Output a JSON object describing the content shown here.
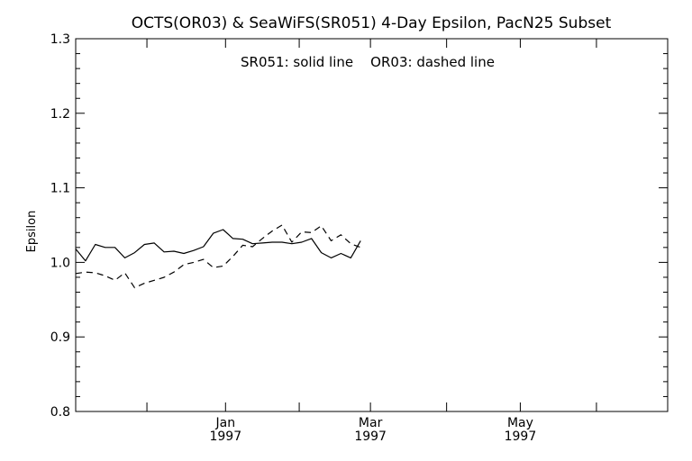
{
  "chart_data": {
    "type": "line",
    "title": "OCTS(OR03) & SeaWiFS(SR051) 4-Day Epsilon, PacN25 Subset",
    "annotation": "SR051: solid line    OR03: dashed line",
    "ylabel": "Epsilon",
    "xlabel": "",
    "ylim": [
      0.8,
      1.3
    ],
    "yticks": [
      "0.8",
      "0.9",
      "1.0",
      "1.1",
      "1.2",
      "1.3"
    ],
    "yminor_step": 0.02,
    "xlim": [
      "1996-11-01",
      "1997-06-30"
    ],
    "xticks": [
      {
        "date": "1996-11-30"
      },
      {
        "date": "1997-01-01",
        "month": "Jan",
        "year": "1997"
      },
      {
        "date": "1997-01-31"
      },
      {
        "date": "1997-03-01",
        "month": "Mar",
        "year": "1997"
      },
      {
        "date": "1997-04-01"
      },
      {
        "date": "1997-05-01",
        "month": "May",
        "year": "1997"
      },
      {
        "date": "1997-06-01"
      }
    ],
    "grid": false,
    "legend": "none",
    "series": [
      {
        "style": "solid",
        "points": [
          [
            "1996-11-01",
            1.018
          ],
          [
            "1996-11-05",
            1.002
          ],
          [
            "1996-11-09",
            1.024
          ],
          [
            "1996-11-13",
            1.02
          ],
          [
            "1996-11-17",
            1.02
          ],
          [
            "1996-11-21",
            1.006
          ],
          [
            "1996-11-25",
            1.013
          ],
          [
            "1996-11-29",
            1.024
          ],
          [
            "1996-12-03",
            1.026
          ],
          [
            "1996-12-07",
            1.014
          ],
          [
            "1996-12-11",
            1.015
          ],
          [
            "1996-12-15",
            1.012
          ],
          [
            "1996-12-19",
            1.016
          ],
          [
            "1996-12-23",
            1.021
          ],
          [
            "1996-12-27",
            1.039
          ],
          [
            "1996-12-31",
            1.044
          ],
          [
            "1997-01-04",
            1.032
          ],
          [
            "1997-01-08",
            1.031
          ],
          [
            "1997-01-12",
            1.025
          ],
          [
            "1997-01-16",
            1.026
          ],
          [
            "1997-01-20",
            1.027
          ],
          [
            "1997-01-24",
            1.027
          ],
          [
            "1997-01-28",
            1.025
          ],
          [
            "1997-02-01",
            1.027
          ],
          [
            "1997-02-05",
            1.032
          ],
          [
            "1997-02-09",
            1.013
          ],
          [
            "1997-02-13",
            1.006
          ],
          [
            "1997-02-17",
            1.012
          ],
          [
            "1997-02-21",
            1.006
          ],
          [
            "1997-02-25",
            1.029
          ]
        ]
      },
      {
        "style": "dashed",
        "points": [
          [
            "1996-11-01",
            0.985
          ],
          [
            "1996-11-05",
            0.987
          ],
          [
            "1996-11-09",
            0.986
          ],
          [
            "1996-11-13",
            0.982
          ],
          [
            "1996-11-17",
            0.976
          ],
          [
            "1996-11-21",
            0.986
          ],
          [
            "1996-11-25",
            0.966
          ],
          [
            "1996-11-29",
            0.972
          ],
          [
            "1996-12-03",
            0.976
          ],
          [
            "1996-12-07",
            0.98
          ],
          [
            "1996-12-11",
            0.987
          ],
          [
            "1996-12-15",
            0.997
          ],
          [
            "1996-12-19",
            1.0
          ],
          [
            "1996-12-23",
            1.004
          ],
          [
            "1996-12-27",
            0.993
          ],
          [
            "1996-12-31",
            0.995
          ],
          [
            "1997-01-04",
            1.008
          ],
          [
            "1997-01-08",
            1.023
          ],
          [
            "1997-01-12",
            1.021
          ],
          [
            "1997-01-16",
            1.032
          ],
          [
            "1997-01-20",
            1.042
          ],
          [
            "1997-01-24",
            1.05
          ],
          [
            "1997-01-28",
            1.027
          ],
          [
            "1997-02-01",
            1.041
          ],
          [
            "1997-02-05",
            1.04
          ],
          [
            "1997-02-09",
            1.049
          ],
          [
            "1997-02-13",
            1.029
          ],
          [
            "1997-02-17",
            1.037
          ],
          [
            "1997-02-21",
            1.025
          ],
          [
            "1997-02-25",
            1.02
          ]
        ]
      }
    ]
  }
}
